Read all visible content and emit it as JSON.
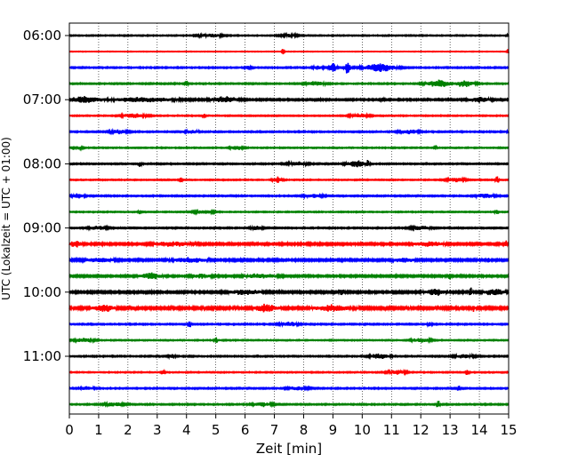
{
  "chart_data": {
    "type": "line",
    "title": "",
    "xlabel": "Zeit  [min]",
    "ylabel": "UTC (Lokalzeit = UTC + 01:00)",
    "xlim": [
      0,
      15
    ],
    "x_ticks": [
      "0",
      "1",
      "2",
      "3",
      "4",
      "5",
      "6",
      "7",
      "8",
      "9",
      "10",
      "11",
      "12",
      "13",
      "14",
      "15"
    ],
    "y_ticks": [
      "06:00",
      "07:00",
      "08:00",
      "09:00",
      "10:00",
      "11:00"
    ],
    "grid": "vertical dotted",
    "legend": "none",
    "row_interval_min": 15,
    "start_time": "06:00",
    "colors": [
      "#000000",
      "#ff0000",
      "#0000ff",
      "#008000"
    ],
    "traces": [
      {
        "time": "06:00",
        "color": "#000000",
        "noise": 0.5,
        "bursts": [
          [
            4.8,
            0.4,
            1.5
          ],
          [
            7.5,
            0.3,
            1.2
          ],
          [
            15.0,
            0.05,
            1.5
          ]
        ]
      },
      {
        "time": "06:15",
        "color": "#ff0000",
        "noise": 0.3,
        "bursts": [
          [
            7.3,
            0.04,
            4.5
          ],
          [
            15.0,
            0.05,
            3.0
          ]
        ]
      },
      {
        "time": "06:30",
        "color": "#0000ff",
        "noise": 0.6,
        "bursts": [
          [
            6.1,
            0.1,
            2.0
          ],
          [
            8.5,
            0.15,
            2.0
          ],
          [
            9.0,
            0.1,
            6.0
          ],
          [
            9.5,
            0.08,
            7.5
          ],
          [
            10.6,
            0.5,
            4.0
          ]
        ]
      },
      {
        "time": "06:45",
        "color": "#008000",
        "noise": 0.6,
        "bursts": [
          [
            4.0,
            0.05,
            3.0
          ],
          [
            8.4,
            0.3,
            2.0
          ],
          [
            12.6,
            0.4,
            3.5
          ],
          [
            13.5,
            0.3,
            3.0
          ]
        ]
      },
      {
        "time": "07:00",
        "color": "#000000",
        "noise": 0.8,
        "bursts": [
          [
            0.5,
            0.5,
            3.0
          ],
          [
            2.5,
            1.0,
            2.0
          ],
          [
            5.3,
            0.4,
            3.0
          ],
          [
            10.7,
            0.05,
            3.0
          ],
          [
            14.0,
            0.3,
            2.5
          ]
        ]
      },
      {
        "time": "07:15",
        "color": "#ff0000",
        "noise": 0.5,
        "bursts": [
          [
            2.2,
            0.4,
            2.0
          ],
          [
            4.6,
            0.05,
            3.0
          ],
          [
            9.9,
            0.3,
            2.0
          ]
        ]
      },
      {
        "time": "07:30",
        "color": "#0000ff",
        "noise": 0.6,
        "bursts": [
          [
            1.7,
            0.3,
            1.8
          ],
          [
            4.2,
            0.2,
            1.8
          ],
          [
            11.6,
            0.3,
            2.0
          ],
          [
            15.0,
            0.05,
            2.0
          ]
        ]
      },
      {
        "time": "07:45",
        "color": "#008000",
        "noise": 0.5,
        "bursts": [
          [
            0.2,
            0.2,
            2.0
          ],
          [
            5.7,
            0.2,
            2.0
          ],
          [
            12.5,
            0.05,
            2.5
          ]
        ]
      },
      {
        "time": "08:00",
        "color": "#000000",
        "noise": 0.6,
        "bursts": [
          [
            2.4,
            0.05,
            3.0
          ],
          [
            7.8,
            0.3,
            2.0
          ],
          [
            9.8,
            0.3,
            3.0
          ],
          [
            10.2,
            0.05,
            4.0
          ]
        ]
      },
      {
        "time": "08:15",
        "color": "#ff0000",
        "noise": 0.5,
        "bursts": [
          [
            3.8,
            0.05,
            3.0
          ],
          [
            7.1,
            0.15,
            3.0
          ],
          [
            13.2,
            0.3,
            2.0
          ],
          [
            14.6,
            0.05,
            4.0
          ]
        ]
      },
      {
        "time": "08:30",
        "color": "#0000ff",
        "noise": 0.6,
        "bursts": [
          [
            0.3,
            0.2,
            2.0
          ],
          [
            8.3,
            0.3,
            1.8
          ],
          [
            14.2,
            0.3,
            2.0
          ]
        ]
      },
      {
        "time": "08:45",
        "color": "#008000",
        "noise": 0.5,
        "bursts": [
          [
            2.4,
            0.05,
            2.5
          ],
          [
            4.6,
            0.3,
            2.0
          ],
          [
            14.6,
            0.05,
            3.0
          ]
        ]
      },
      {
        "time": "09:00",
        "color": "#000000",
        "noise": 0.6,
        "bursts": [
          [
            1.0,
            0.3,
            1.8
          ],
          [
            6.4,
            0.2,
            2.0
          ],
          [
            12.0,
            0.3,
            2.0
          ]
        ]
      },
      {
        "time": "09:15",
        "color": "#ff0000",
        "noise": 1.0,
        "bursts": [
          [
            0.2,
            0.2,
            2.5
          ],
          [
            3.5,
            0.5,
            2.0
          ],
          [
            12.3,
            0.4,
            2.0
          ],
          [
            14.9,
            0.05,
            3.0
          ]
        ]
      },
      {
        "time": "09:30",
        "color": "#0000ff",
        "noise": 1.0,
        "bursts": [
          [
            1.0,
            0.4,
            2.0
          ],
          [
            4.1,
            0.5,
            2.0
          ],
          [
            11.4,
            0.3,
            2.0
          ],
          [
            14.3,
            0.05,
            3.0
          ]
        ]
      },
      {
        "time": "09:45",
        "color": "#008000",
        "noise": 0.9,
        "bursts": [
          [
            2.8,
            0.3,
            3.0
          ],
          [
            4.5,
            0.3,
            2.0
          ],
          [
            6.5,
            0.5,
            2.0
          ],
          [
            13.0,
            0.05,
            3.0
          ]
        ]
      },
      {
        "time": "10:00",
        "color": "#000000",
        "noise": 1.0,
        "bursts": [
          [
            6.0,
            0.5,
            2.0
          ],
          [
            9.3,
            0.05,
            4.5
          ],
          [
            12.5,
            0.3,
            3.0
          ],
          [
            13.7,
            0.05,
            4.0
          ],
          [
            14.5,
            0.3,
            3.0
          ]
        ]
      },
      {
        "time": "10:15",
        "color": "#ff0000",
        "noise": 1.2,
        "bursts": [
          [
            1.2,
            0.3,
            3.0
          ],
          [
            6.7,
            0.3,
            3.5
          ],
          [
            9.0,
            0.5,
            2.5
          ],
          [
            13.8,
            0.05,
            3.0
          ]
        ]
      },
      {
        "time": "10:30",
        "color": "#0000ff",
        "noise": 0.6,
        "bursts": [
          [
            4.1,
            0.05,
            3.5
          ],
          [
            7.5,
            0.3,
            2.0
          ],
          [
            12.3,
            0.05,
            3.0
          ]
        ]
      },
      {
        "time": "10:45",
        "color": "#008000",
        "noise": 0.5,
        "bursts": [
          [
            0.5,
            0.3,
            2.0
          ],
          [
            5.0,
            0.05,
            3.0
          ],
          [
            12.0,
            0.3,
            2.0
          ]
        ]
      },
      {
        "time": "11:00",
        "color": "#000000",
        "noise": 0.6,
        "bursts": [
          [
            3.5,
            0.1,
            2.5
          ],
          [
            10.6,
            0.3,
            2.5
          ],
          [
            13.5,
            0.3,
            2.0
          ]
        ]
      },
      {
        "time": "11:15",
        "color": "#ff0000",
        "noise": 0.5,
        "bursts": [
          [
            3.2,
            0.05,
            3.5
          ],
          [
            11.2,
            0.3,
            2.0
          ],
          [
            13.6,
            0.05,
            3.5
          ]
        ]
      },
      {
        "time": "11:30",
        "color": "#0000ff",
        "noise": 0.6,
        "bursts": [
          [
            0.6,
            0.2,
            2.0
          ],
          [
            7.8,
            0.3,
            2.0
          ],
          [
            13.3,
            0.05,
            3.0
          ]
        ]
      },
      {
        "time": "11:45",
        "color": "#008000",
        "noise": 0.6,
        "bursts": [
          [
            1.5,
            0.3,
            2.0
          ],
          [
            6.6,
            0.3,
            2.0
          ],
          [
            12.6,
            0.05,
            3.5
          ]
        ]
      }
    ]
  }
}
